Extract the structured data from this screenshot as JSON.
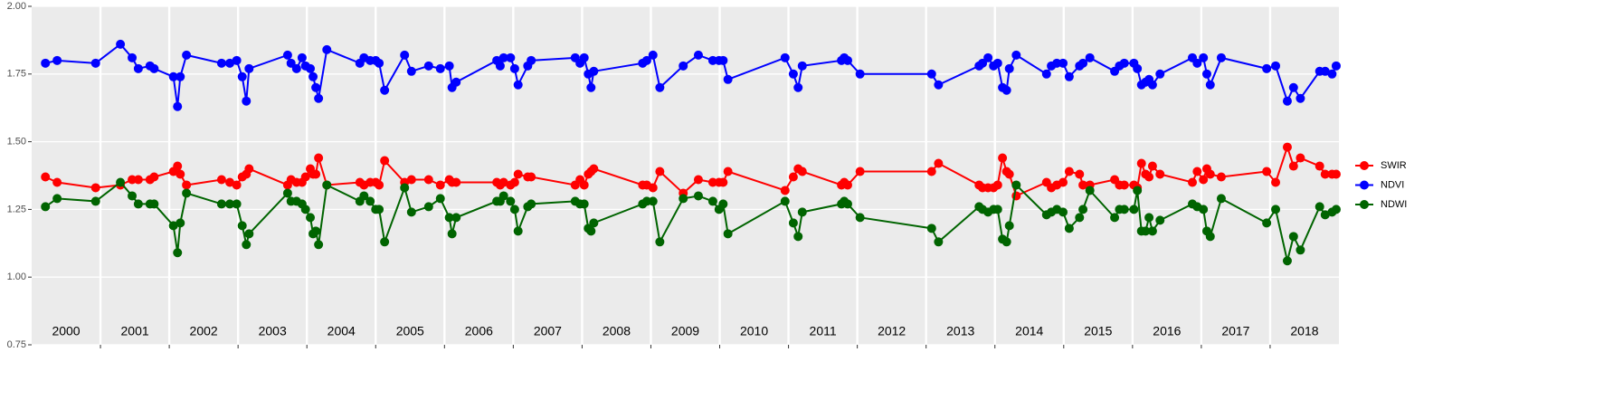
{
  "chart_data": {
    "type": "line",
    "x": [
      2000.2,
      2000.37,
      2000.93,
      2001.29,
      2001.46,
      2001.55,
      2001.72,
      2001.78,
      2002.06,
      2002.12,
      2002.16,
      2002.25,
      2002.76,
      2002.88,
      2002.98,
      2003.06,
      2003.12,
      2003.16,
      2003.72,
      2003.77,
      2003.85,
      2003.93,
      2003.98,
      2004.05,
      2004.09,
      2004.13,
      2004.17,
      2004.29,
      2004.77,
      2004.83,
      2004.92,
      2005.0,
      2005.05,
      2005.13,
      2005.42,
      2005.52,
      2005.77,
      2005.94,
      2006.07,
      2006.11,
      2006.17,
      2006.76,
      2006.81,
      2006.86,
      2006.96,
      2007.02,
      2007.07,
      2007.21,
      2007.26,
      2007.9,
      2007.97,
      2008.03,
      2008.09,
      2008.13,
      2008.17,
      2008.88,
      2008.94,
      2009.03,
      2009.13,
      2009.47,
      2009.69,
      2009.9,
      2009.99,
      2010.05,
      2010.12,
      2010.95,
      2011.07,
      2011.14,
      2011.2,
      2011.77,
      2011.81,
      2011.86,
      2012.04,
      2013.08,
      2013.18,
      2013.77,
      2013.82,
      2013.9,
      2013.98,
      2014.04,
      2014.11,
      2014.17,
      2014.21,
      2014.31,
      2014.75,
      2014.82,
      2014.9,
      2014.99,
      2015.08,
      2015.23,
      2015.28,
      2015.38,
      2015.74,
      2015.81,
      2015.88,
      2016.02,
      2016.07,
      2016.13,
      2016.19,
      2016.24,
      2016.29,
      2016.4,
      2016.87,
      2016.94,
      2017.03,
      2017.08,
      2017.13,
      2017.29,
      2017.95,
      2018.08,
      2018.25,
      2018.34,
      2018.44,
      2018.72,
      2018.8,
      2018.9,
      2018.96
    ],
    "series": [
      {
        "name": "SWIR",
        "color": "#ff0000",
        "values": [
          1.37,
          1.35,
          1.33,
          1.34,
          1.36,
          1.36,
          1.36,
          1.37,
          1.39,
          1.41,
          1.38,
          1.34,
          1.36,
          1.35,
          1.34,
          1.37,
          1.38,
          1.4,
          1.34,
          1.36,
          1.35,
          1.35,
          1.37,
          1.4,
          1.38,
          1.38,
          1.44,
          1.34,
          1.35,
          1.34,
          1.35,
          1.35,
          1.34,
          1.43,
          1.35,
          1.36,
          1.36,
          1.34,
          1.36,
          1.35,
          1.35,
          1.35,
          1.34,
          1.35,
          1.34,
          1.35,
          1.38,
          1.37,
          1.37,
          1.34,
          1.36,
          1.34,
          1.38,
          1.39,
          1.4,
          1.34,
          1.34,
          1.33,
          1.39,
          1.31,
          1.36,
          1.35,
          1.35,
          1.35,
          1.39,
          1.32,
          1.37,
          1.4,
          1.39,
          1.34,
          1.35,
          1.34,
          1.39,
          1.39,
          1.42,
          1.34,
          1.33,
          1.33,
          1.33,
          1.34,
          1.44,
          1.39,
          1.38,
          1.3,
          1.35,
          1.33,
          1.34,
          1.35,
          1.39,
          1.38,
          1.34,
          1.34,
          1.36,
          1.34,
          1.34,
          1.34,
          1.33,
          1.42,
          1.38,
          1.37,
          1.41,
          1.38,
          1.35,
          1.39,
          1.36,
          1.4,
          1.38,
          1.37,
          1.39,
          1.35,
          1.48,
          1.41,
          1.44,
          1.41,
          1.38,
          1.38,
          1.38
        ]
      },
      {
        "name": "NDVI",
        "color": "#0000ff",
        "values": [
          1.79,
          1.8,
          1.79,
          1.86,
          1.81,
          1.77,
          1.78,
          1.77,
          1.74,
          1.63,
          1.74,
          1.82,
          1.79,
          1.79,
          1.8,
          1.74,
          1.65,
          1.77,
          1.82,
          1.79,
          1.77,
          1.81,
          1.78,
          1.77,
          1.74,
          1.7,
          1.66,
          1.84,
          1.79,
          1.81,
          1.8,
          1.8,
          1.79,
          1.69,
          1.82,
          1.76,
          1.78,
          1.77,
          1.78,
          1.7,
          1.72,
          1.8,
          1.78,
          1.81,
          1.81,
          1.77,
          1.71,
          1.78,
          1.8,
          1.81,
          1.79,
          1.81,
          1.75,
          1.7,
          1.76,
          1.79,
          1.8,
          1.82,
          1.7,
          1.78,
          1.82,
          1.8,
          1.8,
          1.8,
          1.73,
          1.81,
          1.75,
          1.7,
          1.78,
          1.8,
          1.81,
          1.8,
          1.75,
          1.75,
          1.71,
          1.78,
          1.79,
          1.81,
          1.78,
          1.79,
          1.7,
          1.69,
          1.77,
          1.82,
          1.75,
          1.78,
          1.79,
          1.79,
          1.74,
          1.78,
          1.79,
          1.81,
          1.76,
          1.78,
          1.79,
          1.79,
          1.77,
          1.71,
          1.72,
          1.73,
          1.71,
          1.75,
          1.81,
          1.79,
          1.81,
          1.75,
          1.71,
          1.81,
          1.77,
          1.78,
          1.65,
          1.7,
          1.66,
          1.76,
          1.76,
          1.75,
          1.78
        ]
      },
      {
        "name": "NDWI",
        "color": "#006400",
        "values": [
          1.26,
          1.29,
          1.28,
          1.35,
          1.3,
          1.27,
          1.27,
          1.27,
          1.19,
          1.09,
          1.2,
          1.31,
          1.27,
          1.27,
          1.27,
          1.19,
          1.12,
          1.16,
          1.31,
          1.28,
          1.28,
          1.27,
          1.25,
          1.22,
          1.16,
          1.17,
          1.12,
          1.34,
          1.28,
          1.3,
          1.28,
          1.25,
          1.25,
          1.13,
          1.33,
          1.24,
          1.26,
          1.29,
          1.22,
          1.16,
          1.22,
          1.28,
          1.28,
          1.3,
          1.28,
          1.25,
          1.17,
          1.26,
          1.27,
          1.28,
          1.27,
          1.27,
          1.18,
          1.17,
          1.2,
          1.27,
          1.28,
          1.28,
          1.13,
          1.29,
          1.3,
          1.28,
          1.25,
          1.27,
          1.16,
          1.28,
          1.2,
          1.15,
          1.24,
          1.27,
          1.28,
          1.27,
          1.22,
          1.18,
          1.13,
          1.26,
          1.25,
          1.24,
          1.25,
          1.25,
          1.14,
          1.13,
          1.19,
          1.34,
          1.23,
          1.24,
          1.25,
          1.24,
          1.18,
          1.22,
          1.25,
          1.32,
          1.22,
          1.25,
          1.25,
          1.25,
          1.32,
          1.17,
          1.17,
          1.22,
          1.17,
          1.21,
          1.27,
          1.26,
          1.25,
          1.17,
          1.15,
          1.29,
          1.2,
          1.25,
          1.06,
          1.15,
          1.1,
          1.26,
          1.23,
          1.24,
          1.25
        ]
      }
    ],
    "xlim": [
      2000,
      2019
    ],
    "xticks": [
      2001,
      2002,
      2003,
      2004,
      2005,
      2006,
      2007,
      2008,
      2009,
      2010,
      2011,
      2012,
      2013,
      2014,
      2015,
      2016,
      2017,
      2018
    ],
    "ylim": [
      0.75,
      2.0
    ],
    "yticks": [
      0.75,
      {
        "value": 1,
        "label": "1.00"
      },
      1.25,
      {
        "value": 1.5,
        "label": "1.50"
      },
      1.75,
      {
        "value": 2,
        "label": "2.00"
      }
    ],
    "grid": true,
    "legend": "right",
    "annotations": [
      {
        "x": 2000.5,
        "text": "2000"
      },
      {
        "x": 2001.5,
        "text": "2001"
      },
      {
        "x": 2002.5,
        "text": "2002"
      },
      {
        "x": 2003.5,
        "text": "2003"
      },
      {
        "x": 2004.5,
        "text": "2004"
      },
      {
        "x": 2005.5,
        "text": "2005"
      },
      {
        "x": 2006.5,
        "text": "2006"
      },
      {
        "x": 2007.5,
        "text": "2007"
      },
      {
        "x": 2008.5,
        "text": "2008"
      },
      {
        "x": 2009.5,
        "text": "2009"
      },
      {
        "x": 2010.5,
        "text": "2010"
      },
      {
        "x": 2011.5,
        "text": "2011"
      },
      {
        "x": 2012.5,
        "text": "2012"
      },
      {
        "x": 2013.5,
        "text": "2013"
      },
      {
        "x": 2014.5,
        "text": "2014"
      },
      {
        "x": 2015.5,
        "text": "2015"
      },
      {
        "x": 2016.5,
        "text": "2016"
      },
      {
        "x": 2017.5,
        "text": "2017"
      },
      {
        "x": 2018.5,
        "text": "2018"
      }
    ]
  }
}
